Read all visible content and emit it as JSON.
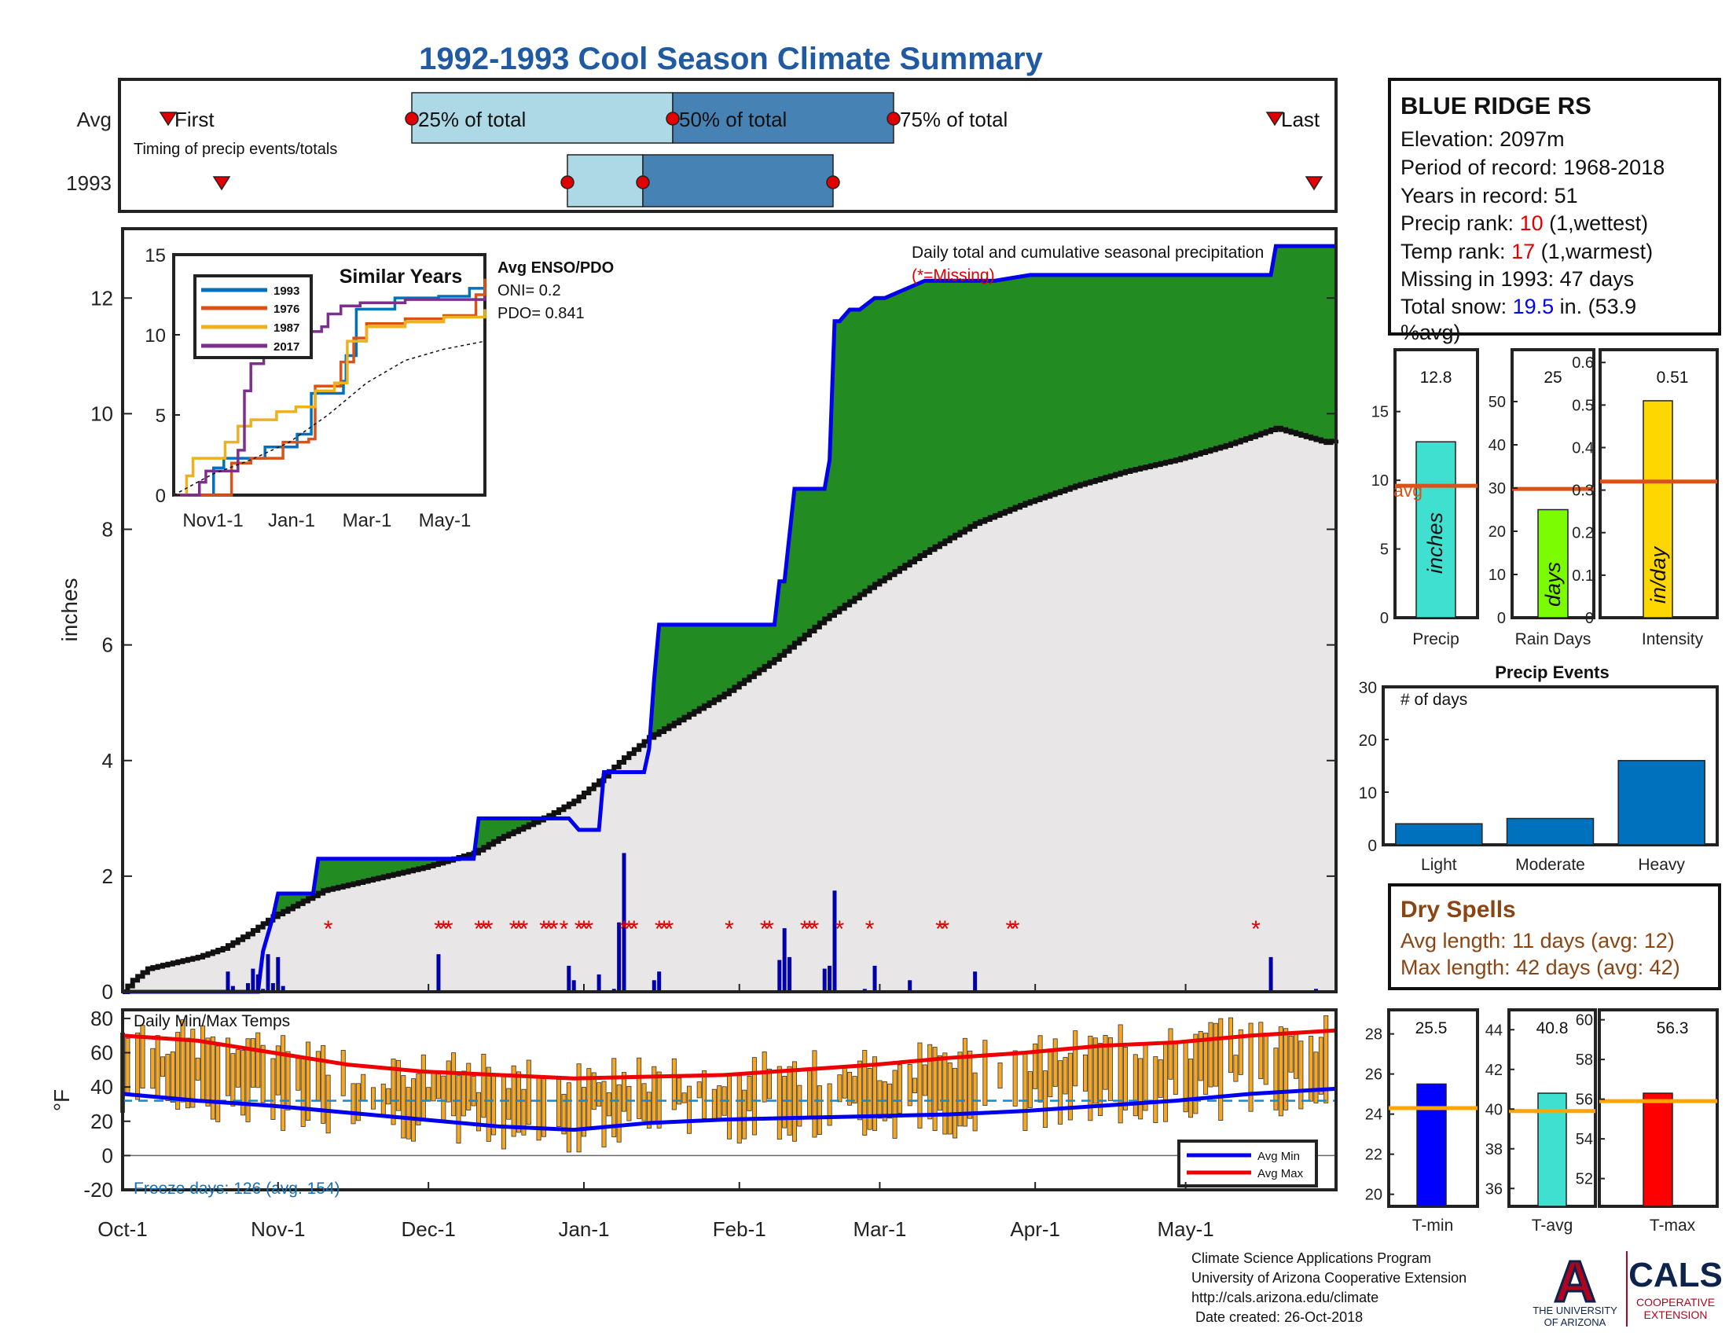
{
  "page_title": "1992-1993 Cool Season Climate Summary",
  "colors": {
    "title": "#1f5aa3",
    "q_light": "#add8e6",
    "q_dark": "#4682b4",
    "marker_red": "#e00000",
    "green": "#228b22",
    "brown": "#b8860b",
    "cum_blue": "#0000ee",
    "avg_line": "#d95319",
    "precip_bar": "#40e0d0",
    "raindays_bar": "#7cfc00",
    "intensity_bar": "#ffd700",
    "event_bar": "#0072bd",
    "temp_bar": "#f5a623",
    "tmin_bar": "#0000ff",
    "tavg_bar": "#40e0d0",
    "tmax_bar": "#ff0000",
    "temp_avg_line": "#ffa500",
    "dry_text": "#8b4513",
    "missing_red": "#e00000",
    "snow_blue": "#0000ff",
    "arizona_red": "#ab0520",
    "arizona_navy": "#0c234b"
  },
  "timing_panel": {
    "row_avg": "Avg",
    "row_year": "1993",
    "first_label": "First",
    "last_label": "Last",
    "p25_label": "25% of total",
    "p50_label": "50% of total",
    "p75_label": "75% of total",
    "caption": "Timing of precip events/totals"
  },
  "station": {
    "name": "BLUE RIDGE RS",
    "elevation": "Elevation: 2097m",
    "period": "Period of record: 1968-2018",
    "years": "Years in record: 51",
    "precip_rank_prefix": "Precip rank: ",
    "precip_rank_value": "10",
    "precip_rank_suffix": " (1,wettest)",
    "temp_rank_prefix": "Temp rank: ",
    "temp_rank_value": "17",
    "temp_rank_suffix": " (1,warmest)",
    "missing": "Missing in 1993: 47 days",
    "snow_prefix": "Total snow: ",
    "snow_value": "19.5",
    "snow_suffix": " in. (53.9",
    "snow_line2": "%avg)"
  },
  "main_panel": {
    "ylabel": "inches",
    "daily_title": "Daily total and cumulative seasonal precipitation",
    "missing_note": "(*=Missing)",
    "enso_title": "Avg ENSO/PDO",
    "oni": "ONI= 0.2",
    "pdo": "PDO= 0.841",
    "month_labels": [
      "Oct-1",
      "Nov-1",
      "Dec-1",
      "Jan-1",
      "Feb-1",
      "Mar-1",
      "Apr-1",
      "May-1"
    ]
  },
  "inset": {
    "title": "Similar Years",
    "xticks": [
      "Nov1-1",
      "Jan-1",
      "Mar-1",
      "May-1"
    ],
    "legend": [
      "1993",
      "1976",
      "1987",
      "2017"
    ]
  },
  "stat_bars": {
    "precip_label": "Precip",
    "raindays_label": "Rain Days",
    "intensity_label": "Intensity",
    "precip_value_text": "12.8",
    "raindays_value_text": "25",
    "intensity_value_text": "0.51",
    "precip_unit": "inches",
    "raindays_unit": "days",
    "intensity_unit": "in/day",
    "avg_label": "avg"
  },
  "events_panel": {
    "title": "Precip Events",
    "ylabel": "# of days"
  },
  "dry_spells": {
    "title": "Dry Spells",
    "avg_line": "Avg length: 11 days (avg: 12)",
    "max_line": "Max length: 42 days (avg: 42)"
  },
  "temp_panel": {
    "title": "Daily Min/Max Temps",
    "ylabel": "°F",
    "freeze": "Freeze days: 126 (avg. 154)",
    "legend_min": "Avg Min",
    "legend_max": "Avg Max"
  },
  "temp_stats": {
    "tmin_label": "T-min",
    "tavg_label": "T-avg",
    "tmax_label": "T-max",
    "tmin_text": "25.5",
    "tavg_text": "40.8",
    "tmax_text": "56.3"
  },
  "footer": {
    "line1": "Climate Science Applications Program",
    "line2": "University of Arizona Cooperative Extension",
    "line3": "http://cals.arizona.edu/climate",
    "line4": " Date created: 26-Oct-2018",
    "ua_line1": "THE UNIVERSITY",
    "ua_line2": "OF ARIZONA",
    "cals": "CALS",
    "coop1": "COOPERATIVE",
    "coop2": "EXTENSION",
    "ua_letter": "A"
  },
  "chart_data": [
    {
      "type": "line",
      "name": "cumulative_precip",
      "ylabel": "inches",
      "ylim": [
        0,
        13.2
      ],
      "yticks": [
        0,
        2,
        4,
        6,
        8,
        10,
        12
      ],
      "xlim_days": [
        0,
        242
      ],
      "x_tick_days": [
        0,
        31,
        61,
        92,
        123,
        151,
        182,
        212
      ],
      "x_tick_labels": [
        "Oct-1",
        "Nov-1",
        "Dec-1",
        "Jan-1",
        "Feb-1",
        "Mar-1",
        "Apr-1",
        "May-1"
      ],
      "series": [
        {
          "name": "1993 cumulative",
          "x": [
            0,
            27,
            28,
            30,
            31,
            38,
            39,
            60,
            61,
            66,
            67,
            70,
            71,
            80,
            81,
            89,
            91,
            95,
            96,
            104,
            105,
            106,
            107,
            130,
            131,
            132,
            134,
            140,
            141,
            142,
            143,
            145,
            147,
            150,
            152,
            160,
            161,
            169,
            170,
            172,
            174,
            181,
            184,
            206,
            207,
            229,
            230,
            238,
            242
          ],
          "y": [
            0,
            0,
            0.7,
            1.3,
            1.7,
            1.7,
            2.3,
            2.3,
            2.3,
            2.3,
            2.3,
            2.3,
            3.0,
            3.0,
            3.0,
            3.0,
            2.8,
            2.8,
            3.8,
            3.8,
            4.2,
            5.4,
            6.35,
            6.35,
            7.1,
            7.1,
            8.7,
            8.7,
            9.2,
            11.6,
            11.6,
            11.8,
            11.8,
            12.0,
            12.0,
            12.3,
            12.3,
            12.3,
            12.3,
            12.3,
            12.3,
            12.4,
            12.4,
            12.4,
            12.4,
            12.4,
            12.9,
            12.9,
            12.9
          ]
        },
        {
          "name": "average cumulative",
          "x": [
            0,
            2,
            5,
            10,
            15,
            20,
            25,
            30,
            40,
            50,
            60,
            70,
            75,
            80,
            85,
            90,
            95,
            100,
            105,
            110,
            120,
            130,
            140,
            150,
            160,
            170,
            180,
            190,
            200,
            210,
            220,
            230,
            240,
            242
          ],
          "y": [
            0.0,
            0.2,
            0.4,
            0.5,
            0.6,
            0.75,
            1.0,
            1.3,
            1.75,
            1.95,
            2.15,
            2.4,
            2.65,
            2.85,
            3.05,
            3.3,
            3.65,
            4.05,
            4.4,
            4.65,
            5.15,
            5.75,
            6.45,
            7.05,
            7.6,
            8.1,
            8.45,
            8.75,
            9.0,
            9.2,
            9.45,
            9.75,
            9.5,
            9.55
          ]
        }
      ],
      "daily_precip": {
        "x": [
          21,
          22,
          25,
          26,
          27,
          28,
          29,
          30,
          31,
          32,
          63,
          89,
          90,
          95,
          98,
          99,
          100,
          106,
          107,
          131,
          132,
          133,
          140,
          141,
          142,
          148,
          150,
          157,
          170,
          229,
          238
        ],
        "y": [
          0.35,
          0.1,
          0.15,
          0.4,
          0.3,
          0.05,
          0.65,
          0.15,
          0.6,
          0.1,
          0.65,
          0.45,
          0.2,
          0.3,
          0.05,
          1.2,
          2.4,
          0.2,
          0.35,
          0.55,
          1.1,
          0.6,
          0.4,
          0.45,
          1.75,
          0.05,
          0.45,
          0.2,
          0.35,
          0.6,
          0.05
        ]
      },
      "missing_days": [
        41,
        63,
        64,
        65,
        71,
        72,
        73,
        78,
        79,
        80,
        84,
        85,
        86,
        88,
        91,
        92,
        93,
        100,
        101,
        102,
        107,
        108,
        109,
        121,
        128,
        129,
        136,
        137,
        138,
        143,
        149,
        163,
        164,
        177,
        178,
        226
      ]
    },
    {
      "type": "line",
      "name": "similar_years_inset",
      "ylim": [
        0,
        15
      ],
      "yticks": [
        0,
        5,
        10,
        15
      ],
      "x_tick_labels": [
        "Nov1-1",
        "Jan-1",
        "Mar-1",
        "May-1"
      ],
      "series": [
        {
          "name": "1993",
          "x": [
            0,
            27,
            31,
            39,
            71,
            96,
            107,
            132,
            134,
            142,
            172,
            206,
            230,
            242
          ],
          "y": [
            0,
            0,
            1.7,
            2.3,
            3.0,
            3.8,
            6.35,
            7.1,
            8.7,
            11.6,
            12.3,
            12.4,
            12.9,
            12.9
          ]
        },
        {
          "name": "1976",
          "x": [
            0,
            40,
            45,
            60,
            85,
            105,
            110,
            130,
            140,
            150,
            180,
            210,
            235,
            242
          ],
          "y": [
            0,
            0,
            2.0,
            2.3,
            3.3,
            3.5,
            6.8,
            8.3,
            9.8,
            10.7,
            11.0,
            11.2,
            12.5,
            13.5
          ]
        },
        {
          "name": "1987",
          "x": [
            0,
            10,
            15,
            40,
            50,
            60,
            80,
            95,
            110,
            125,
            135,
            150,
            180,
            210,
            242
          ],
          "y": [
            0,
            1.2,
            2.3,
            3.3,
            4.3,
            4.7,
            5.2,
            5.5,
            6.5,
            7.0,
            9.6,
            10.5,
            10.8,
            11.1,
            11.6
          ]
        },
        {
          "name": "2017",
          "x": [
            0,
            20,
            25,
            50,
            55,
            60,
            70,
            85,
            115,
            120,
            130,
            145,
            180,
            242
          ],
          "y": [
            0,
            0.8,
            1.5,
            2.8,
            6.5,
            8.2,
            9.5,
            10.2,
            10.5,
            11.3,
            11.8,
            12.0,
            12.2,
            12.4
          ]
        },
        {
          "name": "avg",
          "x": [
            0,
            30,
            60,
            90,
            120,
            150,
            180,
            210,
            242
          ],
          "y": [
            0,
            1.3,
            2.2,
            3.3,
            5.0,
            7.0,
            8.4,
            9.1,
            9.6
          ]
        }
      ]
    },
    {
      "type": "bar",
      "name": "season_stats",
      "categories": [
        "Precip",
        "Rain Days",
        "Intensity"
      ],
      "values": [
        12.8,
        25,
        0.51
      ],
      "averages": [
        9.6,
        29.8,
        0.32
      ],
      "ylims": [
        [
          0,
          19.5
        ],
        [
          0,
          62
        ],
        [
          0,
          0.63
        ]
      ]
    },
    {
      "type": "bar",
      "name": "precip_events",
      "title": "Precip Events",
      "categories": [
        "Light",
        "Moderate",
        "Heavy"
      ],
      "values": [
        4,
        5,
        16
      ],
      "ylim": [
        0,
        30
      ],
      "yticks": [
        0,
        10,
        20,
        30
      ]
    },
    {
      "type": "line",
      "name": "daily_temps",
      "ylabel": "°F",
      "ylim": [
        -20,
        85
      ],
      "yticks": [
        -20,
        0,
        20,
        40,
        60,
        80
      ],
      "freeze_line": 32,
      "avg_max": {
        "x": [
          0,
          15,
          30,
          45,
          60,
          75,
          90,
          105,
          120,
          135,
          150,
          165,
          180,
          195,
          210,
          225,
          242
        ],
        "y": [
          70,
          67,
          60,
          53,
          49,
          47,
          45,
          46,
          47,
          50,
          53,
          57,
          60,
          64,
          66,
          70,
          73
        ]
      },
      "avg_min": {
        "x": [
          0,
          15,
          30,
          45,
          60,
          75,
          90,
          105,
          120,
          135,
          150,
          165,
          180,
          195,
          210,
          225,
          242
        ],
        "y": [
          36,
          32,
          29,
          25,
          21,
          17,
          15,
          19,
          21,
          22,
          23,
          24,
          26,
          29,
          32,
          36,
          39
        ]
      }
    },
    {
      "type": "bar",
      "name": "temp_stats",
      "categories": [
        "T-min",
        "T-avg",
        "T-max"
      ],
      "values": [
        25.5,
        40.8,
        56.3
      ],
      "averages": [
        24.3,
        39.9,
        55.9
      ],
      "ylims": [
        [
          19.4,
          29.2
        ],
        [
          35.1,
          45
        ],
        [
          50.6,
          60.5
        ]
      ],
      "yticks": [
        [
          20,
          22,
          24,
          26,
          28
        ],
        [
          36,
          38,
          40,
          42,
          44
        ],
        [
          52,
          54,
          56,
          58,
          60
        ]
      ]
    }
  ]
}
